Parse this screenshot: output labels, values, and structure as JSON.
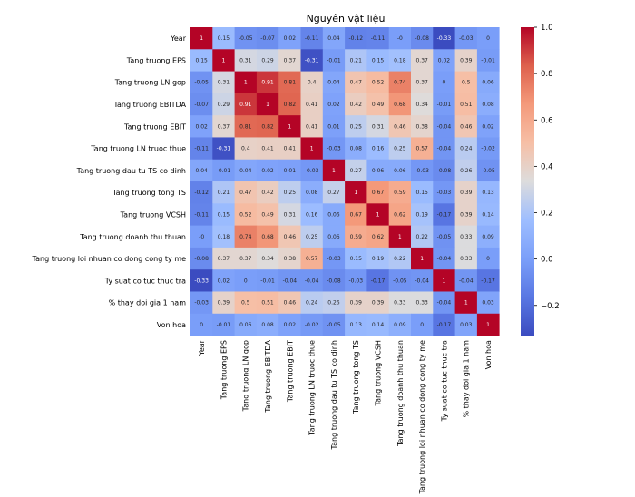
{
  "chart_data": {
    "type": "heatmap",
    "title": "Nguyên vật liệu",
    "labels": [
      "Year",
      "Tang truong EPS",
      "Tang truong  LN gop",
      "Tang truong  EBITDA",
      "Tang truong  EBIT",
      "Tang truong  LN truoc thue",
      "Tang truong  dau tu TS co dinh",
      "Tang truong tong TS",
      "Tang truong  VCSH",
      "Tang truong doanh thu thuan",
      "Tang truong  loi nhuan co dong cong ty me",
      "Ty suat co tuc thuc tra",
      "% thay doi gia 1 nam",
      "Von hoa"
    ],
    "values": [
      [
        1,
        0.15,
        -0.05,
        -0.07,
        0.02,
        -0.11,
        0.04,
        -0.12,
        -0.11,
        0,
        -0.08,
        -0.33,
        -0.03,
        0
      ],
      [
        0.15,
        1,
        0.31,
        0.29,
        0.37,
        -0.31,
        -0.01,
        0.21,
        0.15,
        0.18,
        0.37,
        0.02,
        0.39,
        -0.01
      ],
      [
        -0.05,
        0.31,
        1,
        0.91,
        0.81,
        0.4,
        0.04,
        0.47,
        0.52,
        0.74,
        0.37,
        0,
        0.5,
        0.06
      ],
      [
        -0.07,
        0.29,
        0.91,
        1,
        0.82,
        0.41,
        0.02,
        0.42,
        0.49,
        0.68,
        0.34,
        -0.01,
        0.51,
        0.08
      ],
      [
        0.02,
        0.37,
        0.81,
        0.82,
        1,
        0.41,
        0.01,
        0.25,
        0.31,
        0.46,
        0.38,
        -0.04,
        0.46,
        0.02
      ],
      [
        -0.11,
        -0.31,
        0.4,
        0.41,
        0.41,
        1,
        -0.03,
        0.08,
        0.16,
        0.25,
        0.57,
        -0.04,
        0.24,
        -0.02
      ],
      [
        0.04,
        -0.01,
        0.04,
        0.02,
        0.01,
        -0.03,
        1,
        0.27,
        0.06,
        0.06,
        -0.03,
        -0.08,
        0.26,
        -0.05
      ],
      [
        -0.12,
        0.21,
        0.47,
        0.42,
        0.25,
        0.08,
        0.27,
        1,
        0.67,
        0.59,
        0.15,
        -0.03,
        0.39,
        0.13
      ],
      [
        -0.11,
        0.15,
        0.52,
        0.49,
        0.31,
        0.16,
        0.06,
        0.67,
        1,
        0.62,
        0.19,
        -0.17,
        0.39,
        0.14
      ],
      [
        0,
        0.18,
        0.74,
        0.68,
        0.46,
        0.25,
        0.06,
        0.59,
        0.62,
        1,
        0.22,
        -0.05,
        0.33,
        0.09
      ],
      [
        -0.08,
        0.37,
        0.37,
        0.34,
        0.38,
        0.57,
        -0.03,
        0.15,
        0.19,
        0.22,
        1,
        -0.04,
        0.33,
        0
      ],
      [
        -0.33,
        0.02,
        0,
        -0.01,
        -0.04,
        -0.04,
        -0.08,
        -0.03,
        -0.17,
        -0.05,
        -0.04,
        1,
        -0.04,
        -0.17
      ],
      [
        -0.03,
        0.39,
        0.5,
        0.51,
        0.46,
        0.24,
        0.26,
        0.39,
        0.39,
        0.33,
        0.33,
        -0.04,
        1,
        0.03
      ],
      [
        0,
        -0.01,
        0.06,
        0.08,
        0.02,
        -0.02,
        -0.05,
        0.13,
        0.14,
        0.09,
        0,
        -0.17,
        0.03,
        1
      ]
    ],
    "vmin": -0.33,
    "vmax": 1,
    "colormap": "coolwarm",
    "colorbar_ticks": [
      1.0,
      0.8,
      0.6,
      0.4,
      0.2,
      0.0,
      -0.2
    ]
  },
  "colormap_stops": [
    {
      "t": 0.0,
      "color": "#3b4cc0"
    },
    {
      "t": 0.125,
      "color": "#5977e3"
    },
    {
      "t": 0.25,
      "color": "#7b9ff9"
    },
    {
      "t": 0.375,
      "color": "#9ebeff"
    },
    {
      "t": 0.5,
      "color": "#dddcdc"
    },
    {
      "t": 0.625,
      "color": "#f6bfa6"
    },
    {
      "t": 0.75,
      "color": "#f49a7b"
    },
    {
      "t": 0.875,
      "color": "#de614d"
    },
    {
      "t": 1.0,
      "color": "#b40426"
    }
  ]
}
